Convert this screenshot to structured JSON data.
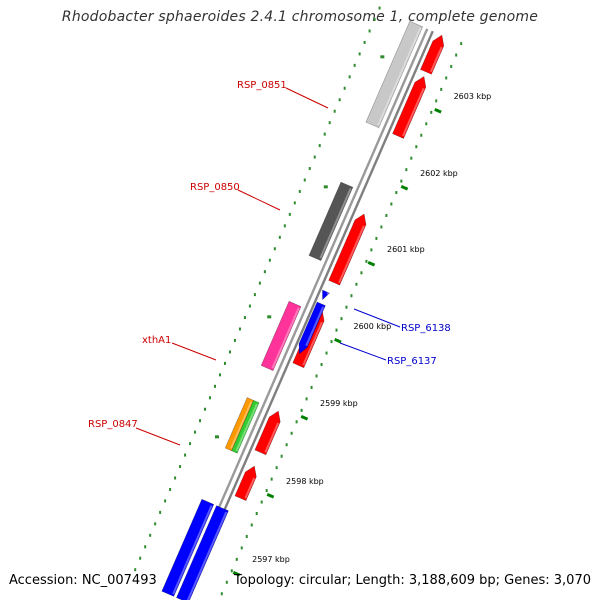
{
  "title": "Rhodobacter sphaeroides 2.4.1 chromosome 1, complete genome",
  "footer": {
    "accession": "Accession: NC_007493",
    "topology": "Topology: circular; Length: 3,188,609 bp; Genes: 3,070"
  },
  "scale": {
    "unit": "kbp",
    "ticks": [
      {
        "kbp": 2603,
        "label": "2603 kbp"
      },
      {
        "kbp": 2602,
        "label": "2602 kbp"
      },
      {
        "kbp": 2601,
        "label": "2601 kbp"
      },
      {
        "kbp": 2600,
        "label": "2600 kbp"
      },
      {
        "kbp": 2599,
        "label": "2599 kbp"
      },
      {
        "kbp": 2598,
        "label": "2598 kbp"
      },
      {
        "kbp": 2597,
        "label": "2597 kbp"
      }
    ]
  },
  "gene_labels": [
    {
      "name": "RSP_0851",
      "color": "#cc0000"
    },
    {
      "name": "RSP_0850",
      "color": "#cc0000"
    },
    {
      "name": "xthA1",
      "color": "#cc0000"
    },
    {
      "name": "RSP_0847",
      "color": "#cc0000"
    },
    {
      "name": "RSP_6138",
      "color": "#0000cc"
    },
    {
      "name": "RSP_6137",
      "color": "#0000cc"
    }
  ],
  "colors": {
    "backbone": "#888888",
    "cds_red": "#ff0000",
    "cds_blue": "#0000ff",
    "feature_light_gray": "#c8c8c8",
    "feature_dark_gray": "#555555",
    "feature_pink": "#ff3399",
    "feature_orange": "#ff9900",
    "feature_green": "#33cc33",
    "tick_green": "#008000"
  }
}
